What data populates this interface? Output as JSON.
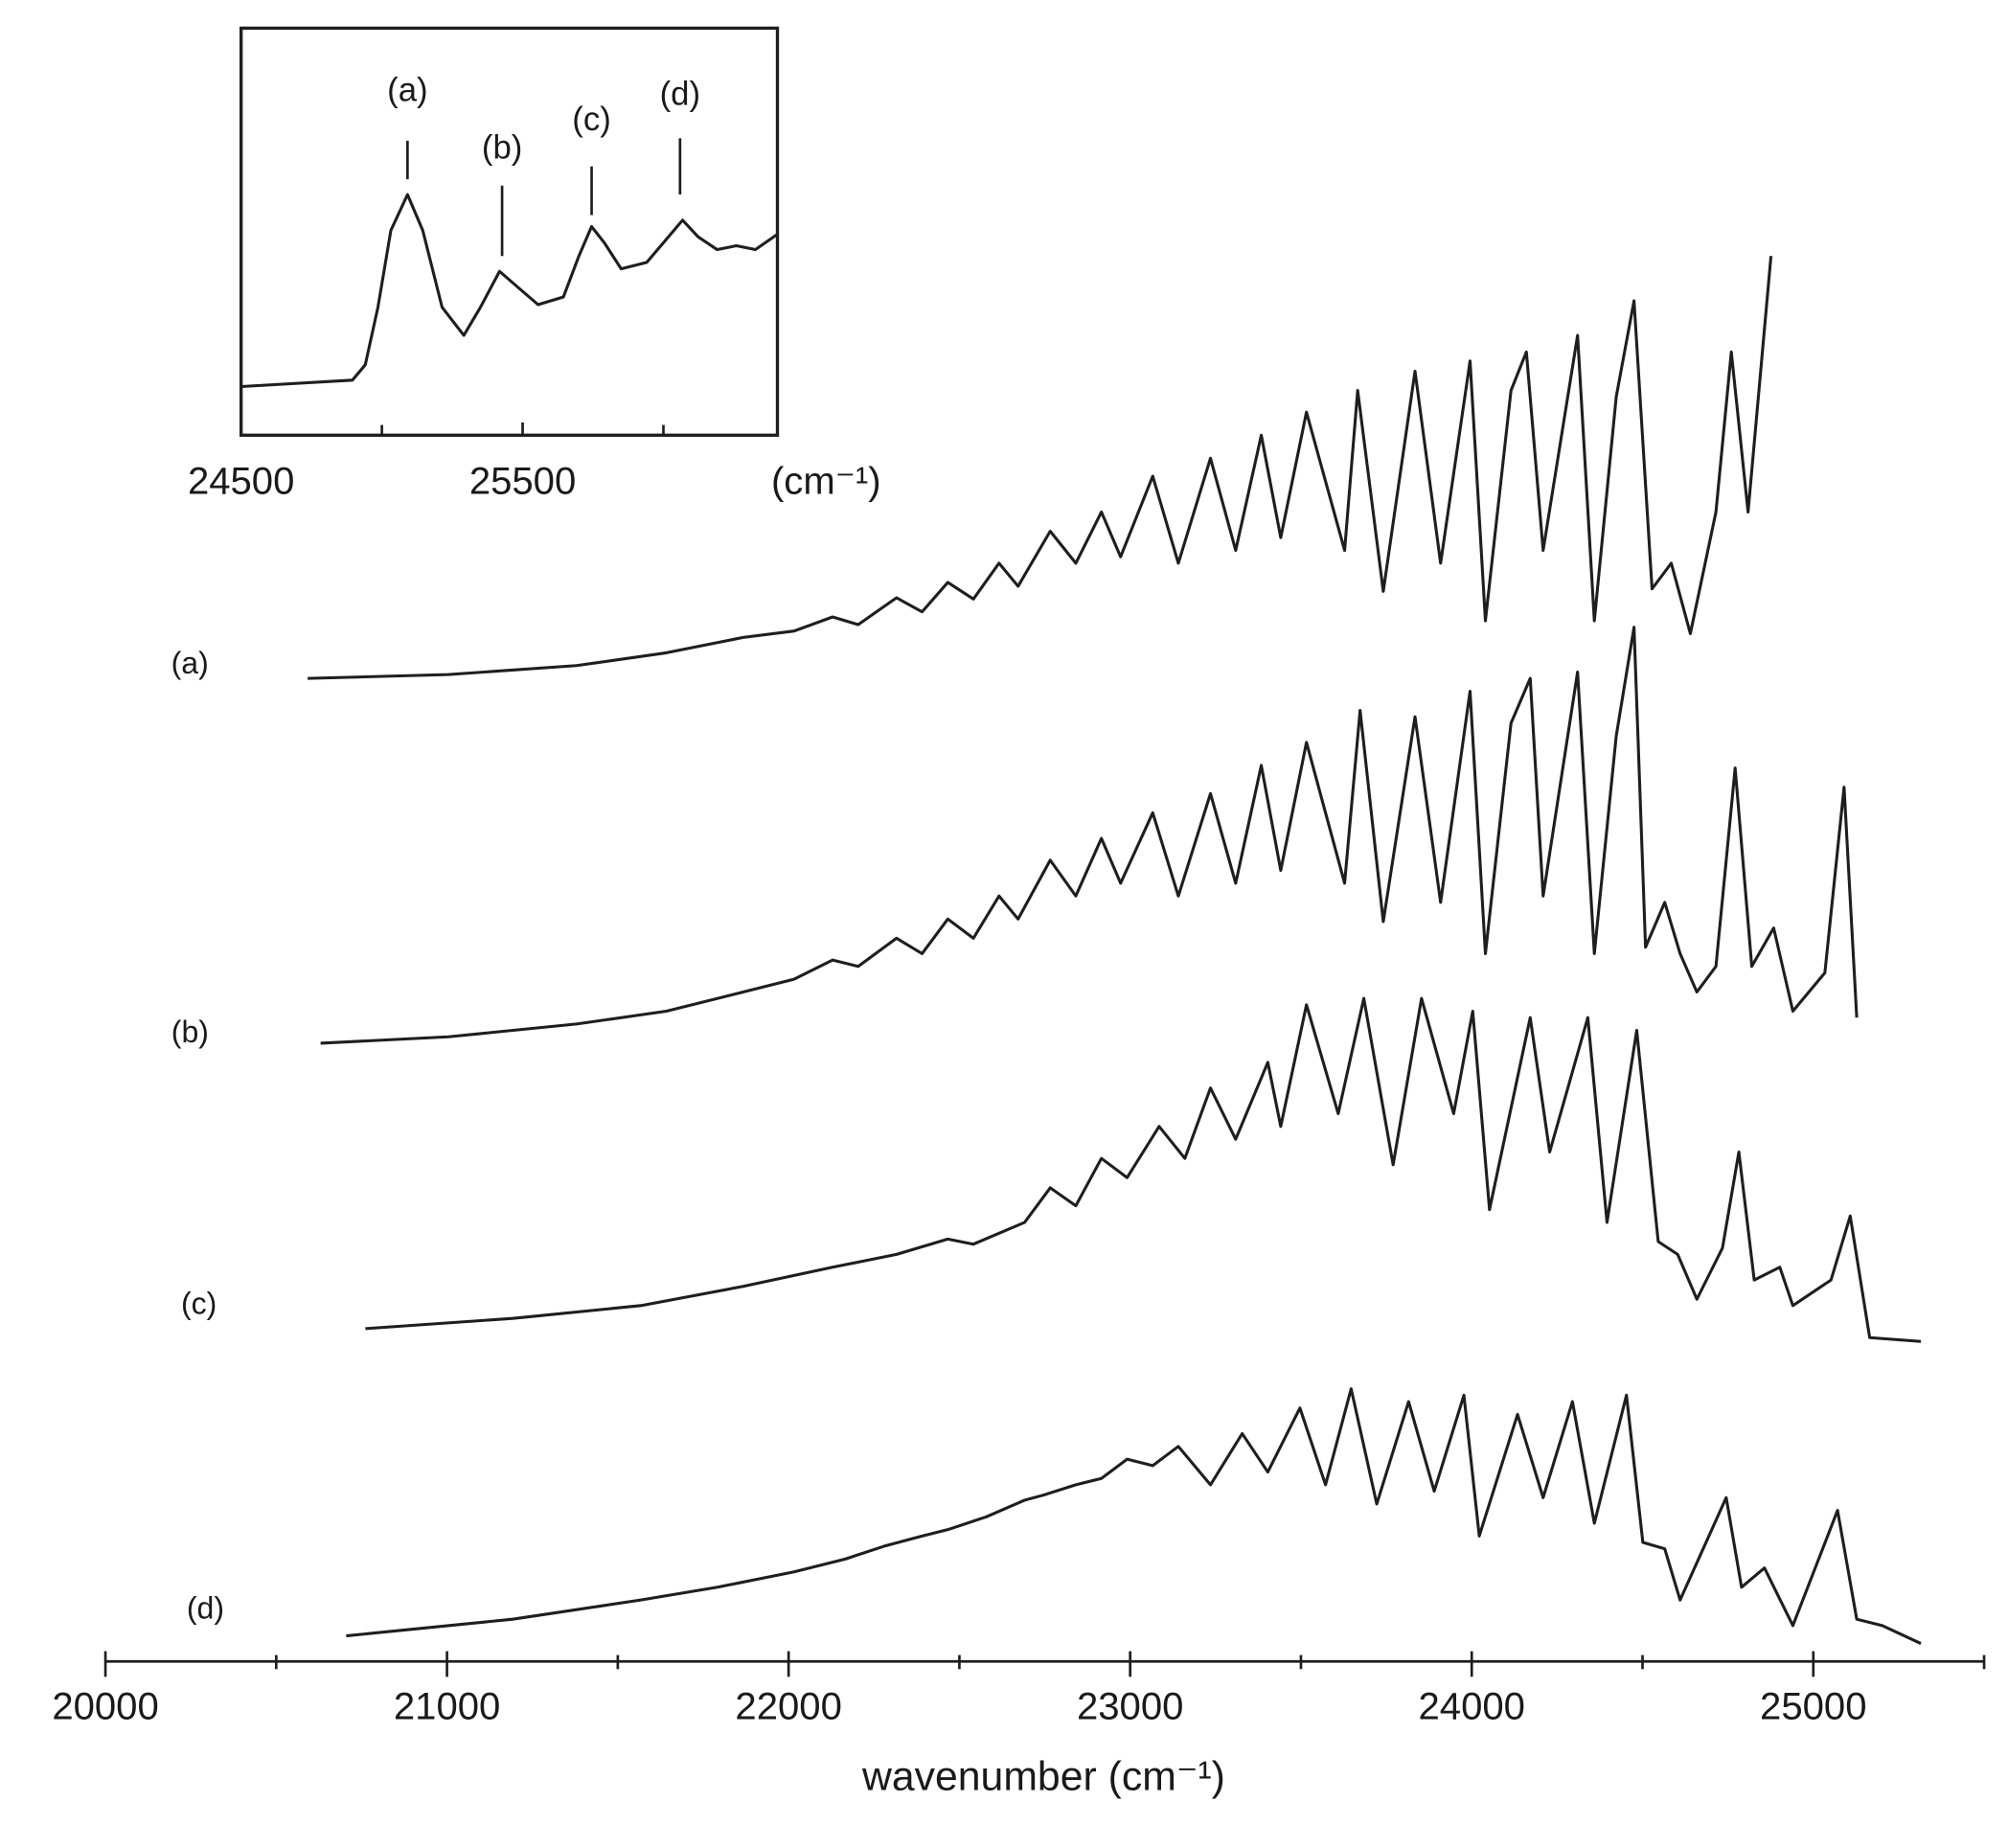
{
  "chart_data": [
    {
      "type": "line",
      "xlabel": "wavenumber (cm⁻¹)",
      "xlim": [
        20000,
        25500
      ],
      "xticks": [
        20000,
        21000,
        22000,
        23000,
        24000,
        25000
      ],
      "xminorticks": [
        20500,
        21500,
        22500,
        23500,
        24500,
        25500
      ],
      "ylim": [
        0,
        1100
      ],
      "series": [
        {
          "name": "(a)",
          "color": "#1e1e1e",
          "x": [
            20592,
            21004,
            21379,
            21642,
            21867,
            22016,
            22129,
            22204,
            22316,
            22391,
            22466,
            22541,
            22616,
            22672,
            22766,
            22841,
            22916,
            22972,
            23066,
            23141,
            23235,
            23309,
            23384,
            23441,
            23516,
            23628,
            23666,
            23741,
            23834,
            23909,
            23995,
            24040,
            24115,
            24160,
            24209,
            24310,
            24359,
            24423,
            24475,
            24528,
            24584,
            24640,
            24715,
            24760,
            24809,
            24876
          ],
          "values": [
            768,
            771,
            778,
            788,
            800,
            805,
            816,
            810,
            831,
            820,
            843,
            830,
            858,
            840,
            883,
            858,
            898,
            863,
            926,
            858,
            940,
            868,
            958,
            878,
            976,
            868,
            993,
            836,
            1008,
            858,
            1016,
            813,
            993,
            1023,
            868,
            1036,
            813,
            988,
            1063,
            838,
            858,
            803,
            898,
            1023,
            898,
            1098
          ]
        },
        {
          "name": "(b)",
          "color": "#1e1e1e",
          "x": [
            20630,
            21004,
            21379,
            21642,
            21867,
            22016,
            22129,
            22204,
            22316,
            22391,
            22466,
            22541,
            22616,
            22672,
            22766,
            22841,
            22916,
            22972,
            23066,
            23141,
            23235,
            23309,
            23384,
            23441,
            23516,
            23628,
            23673,
            23741,
            23834,
            23909,
            23995,
            24040,
            24115,
            24171,
            24209,
            24310,
            24359,
            24423,
            24475,
            24509,
            24565,
            24610,
            24659,
            24715,
            24771,
            24820,
            24884,
            24940,
            25034,
            25090,
            25127
          ],
          "values": [
            483,
            488,
            498,
            508,
            523,
            533,
            548,
            543,
            565,
            553,
            580,
            565,
            598,
            580,
            626,
            598,
            643,
            608,
            663,
            598,
            678,
            608,
            700,
            618,
            718,
            608,
            743,
            578,
            738,
            593,
            758,
            553,
            733,
            768,
            598,
            773,
            553,
            723,
            808,
            558,
            593,
            553,
            523,
            543,
            698,
            543,
            573,
            508,
            538,
            683,
            503
          ]
        },
        {
          "name": "(c)",
          "color": "#1e1e1e",
          "x": [
            20761,
            21192,
            21567,
            21867,
            22129,
            22316,
            22466,
            22541,
            22691,
            22766,
            22841,
            22916,
            22991,
            23085,
            23160,
            23235,
            23309,
            23403,
            23441,
            23516,
            23609,
            23684,
            23770,
            23853,
            23947,
            24003,
            24052,
            24171,
            24228,
            24340,
            24396,
            24483,
            24546,
            24603,
            24659,
            24734,
            24782,
            24827,
            24902,
            24940,
            25052,
            25108,
            25165,
            25315
          ],
          "values": [
            260,
            268,
            278,
            293,
            308,
            318,
            330,
            326,
            343,
            370,
            356,
            393,
            378,
            418,
            393,
            448,
            408,
            468,
            418,
            513,
            428,
            518,
            388,
            518,
            428,
            508,
            353,
            503,
            398,
            503,
            343,
            493,
            328,
            318,
            283,
            323,
            398,
            298,
            308,
            278,
            298,
            348,
            253,
            250
          ]
        },
        {
          "name": "(d)",
          "color": "#1e1e1e",
          "x": [
            20705,
            21192,
            21567,
            21792,
            22016,
            22166,
            22279,
            22391,
            22466,
            22579,
            22691,
            22747,
            22841,
            22916,
            22991,
            23066,
            23141,
            23235,
            23328,
            23403,
            23497,
            23572,
            23647,
            23722,
            23815,
            23890,
            23977,
            24022,
            24134,
            24209,
            24295,
            24359,
            24453,
            24501,
            24565,
            24610,
            24745,
            24790,
            24857,
            24940,
            25071,
            25127,
            25202,
            25315
          ],
          "values": [
            20,
            33,
            48,
            58,
            70,
            80,
            90,
            98,
            103,
            113,
            126,
            130,
            138,
            143,
            158,
            153,
            168,
            138,
            178,
            148,
            198,
            138,
            213,
            123,
            203,
            133,
            208,
            98,
            193,
            128,
            203,
            108,
            208,
            93,
            88,
            48,
            128,
            58,
            73,
            28,
            118,
            33,
            28,
            14
          ]
        }
      ]
    },
    {
      "type": "line",
      "xlabel": "(cm⁻¹)",
      "xlim": [
        24500,
        26405
      ],
      "xticks": [
        24500,
        25500
      ],
      "xminorticks": [
        25000,
        26000
      ],
      "ylim": [
        0,
        318
      ],
      "series": [
        {
          "color": "#1e1e1e",
          "x": [
            24500,
            24895,
            24941,
            24986,
            25032,
            25091,
            25145,
            25214,
            25291,
            25350,
            25418,
            25486,
            25555,
            25645,
            25700,
            25745,
            25791,
            25850,
            25941,
            26018,
            26068,
            26123,
            26191,
            26259,
            26327,
            26405
          ],
          "values": [
            38,
            43,
            55,
            100,
            160,
            188,
            160,
            100,
            78,
            100,
            128,
            115,
            102,
            108,
            140,
            163,
            150,
            130,
            135,
            155,
            168,
            155,
            145,
            148,
            145,
            157
          ]
        }
      ],
      "annotations": [
        {
          "text": "(a)",
          "x": 25091
        },
        {
          "text": "(b)",
          "x": 25427
        },
        {
          "text": "(c)",
          "x": 25745
        },
        {
          "text": "(d)",
          "x": 26059
        }
      ]
    }
  ]
}
